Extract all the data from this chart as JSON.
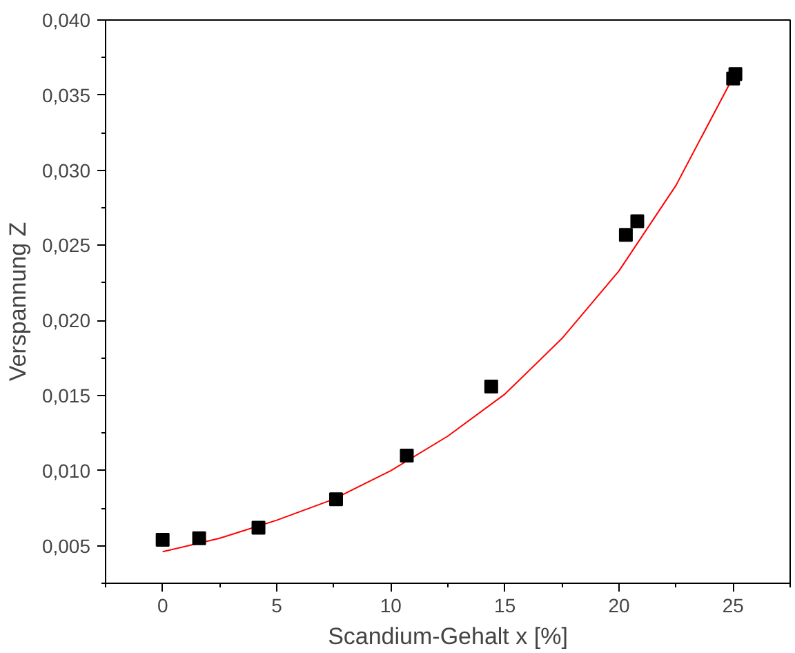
{
  "chart_data": {
    "type": "scatter",
    "xlabel": "Scandium-Gehalt x [%]",
    "ylabel": "Verspannung Z",
    "marker": "square",
    "grid": false,
    "xlim": [
      -2.5,
      27.5
    ],
    "ylim": [
      0.0025,
      0.04
    ],
    "xticks": [
      0,
      5,
      10,
      15,
      20,
      25
    ],
    "yticks": [
      {
        "value": 0.005,
        "label": "0,005"
      },
      {
        "value": 0.01,
        "label": "0,010"
      },
      {
        "value": 0.015,
        "label": "0,015"
      },
      {
        "value": 0.02,
        "label": "0,020"
      },
      {
        "value": 0.025,
        "label": "0,025"
      },
      {
        "value": 0.03,
        "label": "0,030"
      },
      {
        "value": 0.035,
        "label": "0,035"
      },
      {
        "value": 0.04,
        "label": "0,040"
      }
    ],
    "series": [
      {
        "color": "#000000",
        "x": [
          0,
          1.6,
          4.2,
          7.6,
          10.7,
          14.4,
          20.3,
          20.8,
          25.0,
          25.1
        ],
        "values": [
          0.0054,
          0.0055,
          0.0062,
          0.0081,
          0.011,
          0.0156,
          0.0257,
          0.0266,
          0.0361,
          0.0364
        ]
      },
      {
        "type": "line",
        "color": "#ff0000",
        "line_style": "solid",
        "marker": "none",
        "x": [
          0,
          2.5,
          5,
          7.5,
          10,
          12.5,
          15,
          17.5,
          20,
          22.5,
          25
        ],
        "values": [
          0.0046,
          0.0055,
          0.0067,
          0.0081,
          0.01,
          0.0123,
          0.0151,
          0.0188,
          0.0233,
          0.029,
          0.0362
        ]
      }
    ]
  }
}
